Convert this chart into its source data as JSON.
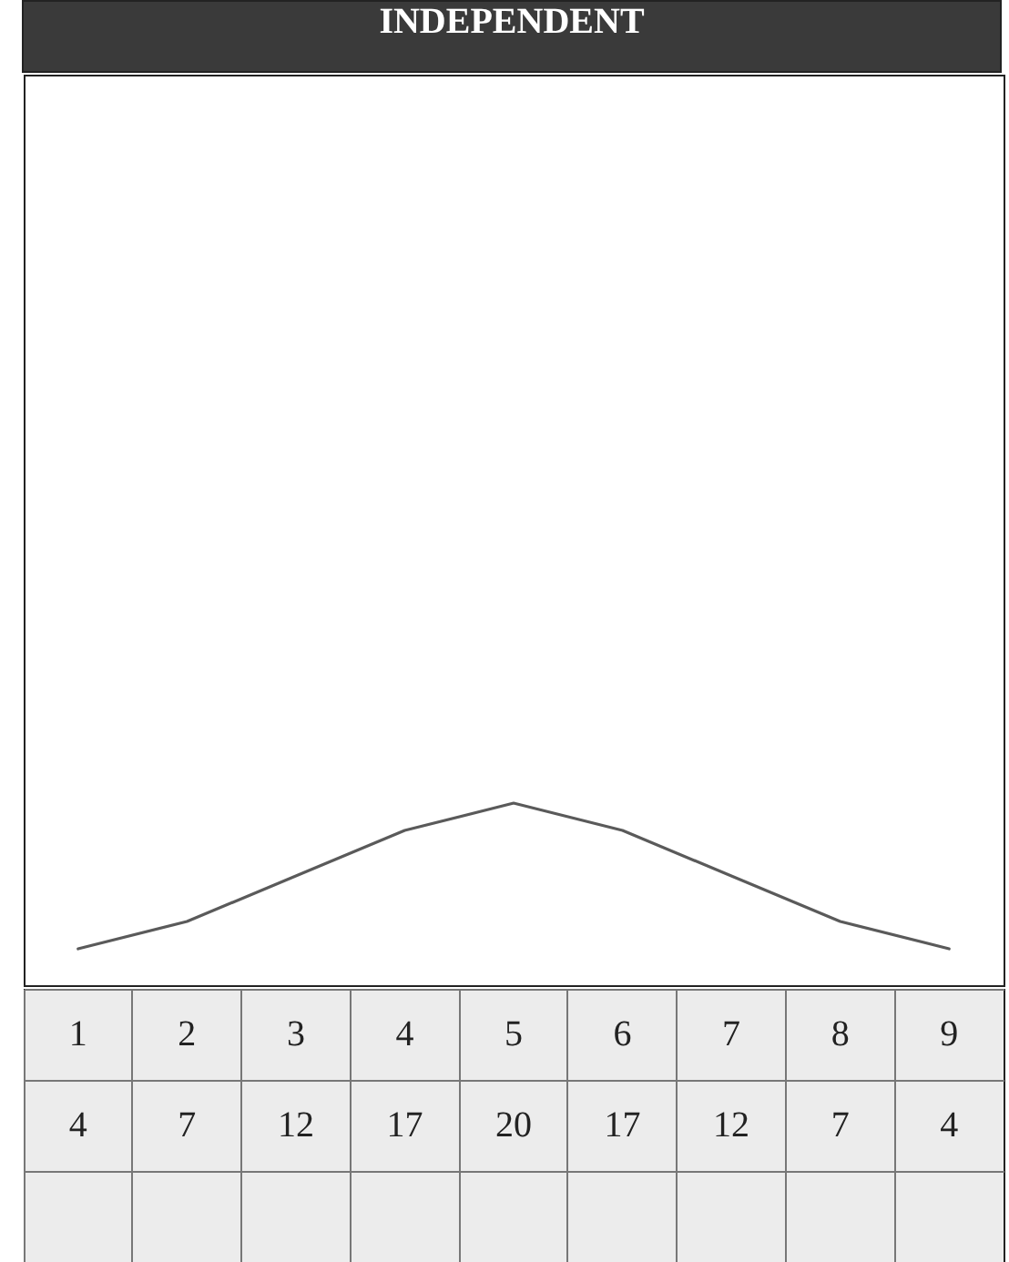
{
  "chart_data": {
    "type": "line",
    "title": "INDEPENDENT",
    "categories": [
      "1",
      "2",
      "3",
      "4",
      "5",
      "6",
      "7",
      "8",
      "9"
    ],
    "values": [
      4,
      7,
      12,
      17,
      20,
      17,
      12,
      7,
      4
    ],
    "color": "#5a5a5a",
    "data_labels": true
  }
}
